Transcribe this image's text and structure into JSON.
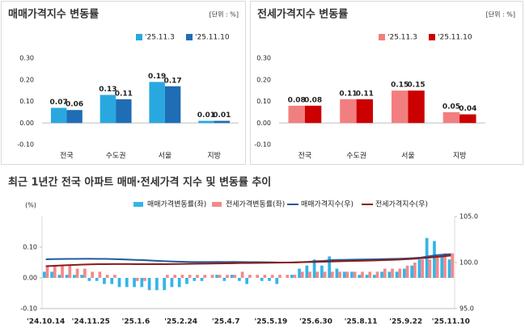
{
  "chart_data": [
    {
      "type": "bar",
      "title": "매매가격지수 변동률",
      "unit": "[단위 : %]",
      "categories": [
        "전국",
        "수도권",
        "서울",
        "지방"
      ],
      "series": [
        {
          "name": "'25.11.3",
          "color": "#29a8e0",
          "values": [
            0.07,
            0.13,
            0.19,
            0.01
          ]
        },
        {
          "name": "'25.11.10",
          "color": "#1f6db5",
          "values": [
            0.06,
            0.11,
            0.17,
            0.01
          ]
        }
      ],
      "ylim": [
        -0.1,
        0.3
      ],
      "yticks": [
        {
          "value": -0.1,
          "label": "-0.10"
        },
        {
          "value": 0,
          "label": "0.00"
        },
        {
          "value": 0.1,
          "label": "0.10"
        },
        {
          "value": 0.2,
          "label": "0.20"
        },
        {
          "value": 0.3,
          "label": "0.30"
        }
      ]
    },
    {
      "type": "bar",
      "title": "전세가격지수 변동률",
      "unit": "[단위 : %]",
      "categories": [
        "전국",
        "수도권",
        "서울",
        "지방"
      ],
      "series": [
        {
          "name": "'25.11.3",
          "color": "#f27f7f",
          "values": [
            0.08,
            0.11,
            0.15,
            0.05
          ]
        },
        {
          "name": "'25.11.10",
          "color": "#cc0000",
          "values": [
            0.08,
            0.11,
            0.15,
            0.04
          ]
        }
      ],
      "ylim": [
        -0.1,
        0.3
      ],
      "yticks": [
        {
          "value": -0.1,
          "label": "-0.10"
        },
        {
          "value": 0,
          "label": "0.00"
        },
        {
          "value": 0.1,
          "label": "0.10"
        },
        {
          "value": 0.2,
          "label": "0.20"
        },
        {
          "value": 0.3,
          "label": "0.30"
        }
      ]
    },
    {
      "type": "combo",
      "title": "최근 1년간 전국 아파트 매매·전세가격 지수 및 변동률 추이",
      "ylabel": "(%)",
      "categories": [
        "'24.10.14",
        null,
        null,
        null,
        null,
        null,
        "'24.11.25",
        null,
        null,
        null,
        null,
        null,
        "'25.1.6",
        null,
        null,
        null,
        null,
        null,
        "'25.2.24",
        null,
        null,
        null,
        null,
        null,
        "'25.4.7",
        null,
        null,
        null,
        null,
        null,
        "'25.5.19",
        null,
        null,
        null,
        null,
        null,
        "'25.6.30",
        null,
        null,
        null,
        null,
        null,
        "'25.8.11",
        null,
        null,
        null,
        null,
        null,
        "'25.9.22",
        null,
        null,
        null,
        null,
        null,
        "'25.11.10"
      ],
      "series": [
        {
          "name": "매매가격변동률(좌)",
          "type": "bar",
          "color": "#33b5e8",
          "values": [
            0.02,
            0.02,
            0.01,
            0.01,
            0.01,
            0.01,
            -0.01,
            -0.01,
            -0.02,
            -0.02,
            -0.03,
            -0.03,
            -0.03,
            -0.03,
            -0.04,
            -0.04,
            -0.04,
            -0.03,
            -0.03,
            -0.02,
            -0.01,
            -0.01,
            0,
            0.01,
            -0.01,
            0.01,
            -0.01,
            -0.02,
            0,
            -0.01,
            -0.01,
            -0.02,
            0,
            0.01,
            0.03,
            0.04,
            0.06,
            0.04,
            0.07,
            0.03,
            0.02,
            0.02,
            0.01,
            0.01,
            0.01,
            0.02,
            0.02,
            0.02,
            0.03,
            0.04,
            0.06,
            0.13,
            0.12,
            0.07,
            0.06
          ]
        },
        {
          "name": "전세가격변동률(좌)",
          "type": "bar",
          "color": "#f4898a",
          "values": [
            0.04,
            0.04,
            0.04,
            0.04,
            0.03,
            0.03,
            0.02,
            0.02,
            0.01,
            0.01,
            0,
            0,
            -0.01,
            -0.01,
            0,
            0,
            0.01,
            0.01,
            0.01,
            0.01,
            0.01,
            0.01,
            0.01,
            0.01,
            0.01,
            0.01,
            0.02,
            0.01,
            0.01,
            0.01,
            0.01,
            0.01,
            0.01,
            0.01,
            0.02,
            0.02,
            0.02,
            0.02,
            0.02,
            0.02,
            0.02,
            0.02,
            0.02,
            0.02,
            0.02,
            0.03,
            0.03,
            0.03,
            0.04,
            0.05,
            0.06,
            0.06,
            0.07,
            0.08,
            0.08
          ]
        },
        {
          "name": "매매가격지수(우)",
          "type": "line",
          "axis": "y2",
          "color": "#1f5c99",
          "values": [
            100.35,
            100.37,
            100.38,
            100.39,
            100.4,
            100.41,
            100.41,
            100.4,
            100.39,
            100.37,
            100.35,
            100.32,
            100.29,
            100.26,
            100.22,
            100.18,
            100.14,
            100.11,
            100.09,
            100.07,
            100.06,
            100.06,
            100.06,
            100.07,
            100.06,
            100.07,
            100.06,
            100.04,
            100.04,
            100.03,
            100.02,
            100,
            100,
            100.01,
            100.04,
            100.08,
            100.14,
            100.18,
            100.25,
            100.28,
            100.3,
            100.32,
            100.33,
            100.34,
            100.35,
            100.37,
            100.39,
            100.41,
            100.44,
            100.48,
            100.54,
            100.67,
            100.79,
            100.86,
            100.92
          ]
        },
        {
          "name": "전세가격지수(우)",
          "type": "line",
          "axis": "y2",
          "color": "#8b1a1a",
          "values": [
            99.6,
            99.64,
            99.68,
            99.72,
            99.75,
            99.78,
            99.8,
            99.82,
            99.83,
            99.84,
            99.84,
            99.84,
            99.83,
            99.82,
            99.82,
            99.82,
            99.83,
            99.84,
            99.85,
            99.86,
            99.87,
            99.88,
            99.89,
            99.9,
            99.91,
            99.92,
            99.94,
            99.95,
            99.96,
            99.97,
            99.98,
            99.99,
            100,
            100.01,
            100.03,
            100.05,
            100.07,
            100.09,
            100.11,
            100.13,
            100.15,
            100.17,
            100.19,
            100.21,
            100.23,
            100.26,
            100.29,
            100.32,
            100.36,
            100.41,
            100.47,
            100.53,
            100.6,
            100.68,
            100.76
          ]
        }
      ],
      "ylim": [
        -0.1,
        0.2
      ],
      "yticks": [
        {
          "value": -0.1,
          "label": "-0.10"
        },
        {
          "value": 0,
          "label": "0.00"
        },
        {
          "value": 0.1,
          "label": "0.10"
        }
      ],
      "y2lim": [
        95,
        105
      ],
      "y2ticks": [
        {
          "value": 95,
          "label": "95.0"
        },
        {
          "value": 100,
          "label": "100.0"
        },
        {
          "value": 105,
          "label": "105.0"
        }
      ]
    }
  ]
}
